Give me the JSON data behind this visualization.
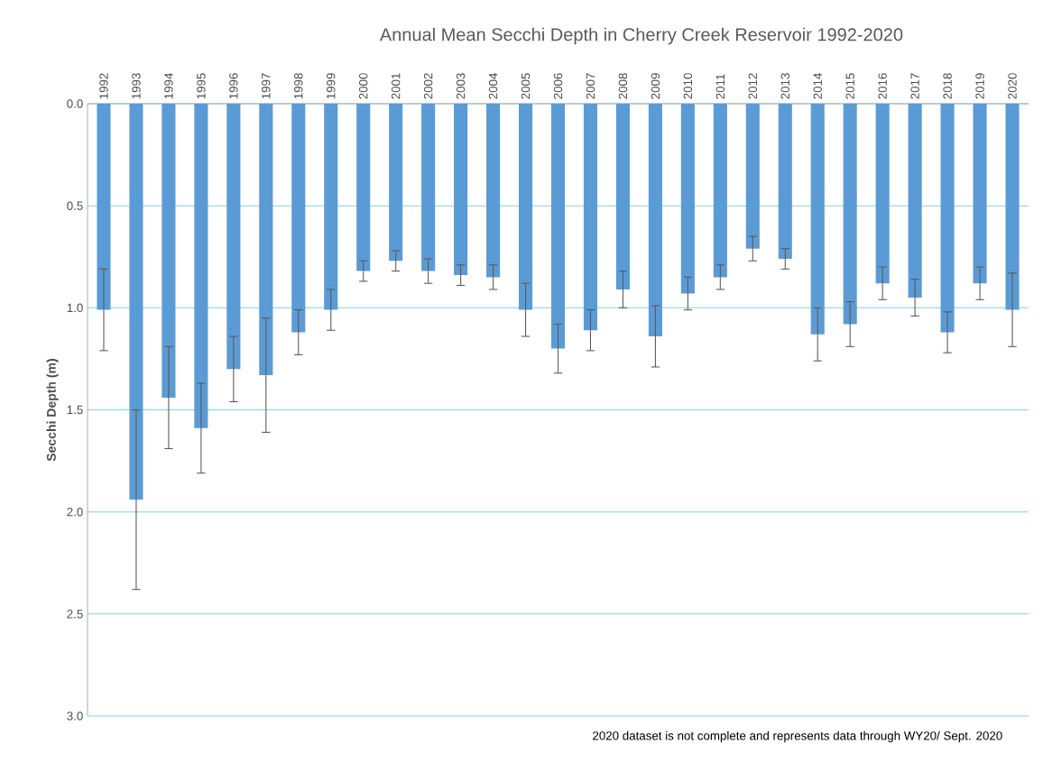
{
  "chart_data": {
    "type": "bar",
    "title": "Annual Mean Secchi Depth in Cherry Creek Reservoir 1992-2020",
    "ylabel": "Secchi Depth (m)",
    "categories": [
      "1992",
      "1993",
      "1994",
      "1995",
      "1996",
      "1997",
      "1998",
      "1999",
      "2000",
      "2001",
      "2002",
      "2003",
      "2004",
      "2005",
      "2006",
      "2007",
      "2008",
      "2009",
      "2010",
      "2011",
      "2012",
      "2013",
      "2014",
      "2015",
      "2016",
      "2017",
      "2018",
      "2019",
      "2020"
    ],
    "values": [
      1.01,
      1.94,
      1.44,
      1.59,
      1.3,
      1.33,
      1.12,
      1.01,
      0.82,
      0.77,
      0.82,
      0.84,
      0.85,
      1.01,
      1.2,
      1.11,
      0.91,
      1.14,
      0.93,
      0.85,
      0.71,
      0.76,
      1.13,
      1.08,
      0.88,
      0.95,
      1.12,
      0.88,
      1.01
    ],
    "errors": [
      0.2,
      0.44,
      0.25,
      0.22,
      0.16,
      0.28,
      0.11,
      0.1,
      0.05,
      0.05,
      0.06,
      0.05,
      0.06,
      0.13,
      0.12,
      0.1,
      0.09,
      0.15,
      0.08,
      0.06,
      0.06,
      0.05,
      0.13,
      0.11,
      0.08,
      0.09,
      0.1,
      0.08,
      0.18
    ],
    "color": "#5b9bd5",
    "ylim": [
      3.0,
      0.0
    ],
    "yticks": [
      {
        "value": 0,
        "label": "0.0"
      },
      {
        "value": 0.5,
        "label": "0.5"
      },
      {
        "value": 1,
        "label": "1.0"
      },
      {
        "value": 1.5,
        "label": "1.5"
      },
      {
        "value": 2,
        "label": "2.0"
      },
      {
        "value": 2.5,
        "label": "2.5"
      },
      {
        "value": 3,
        "label": "3.0"
      }
    ],
    "grid": "y",
    "annotations": [
      "2020 dataset is not complete and represents data through WY20/ Sept. 2020"
    ]
  }
}
